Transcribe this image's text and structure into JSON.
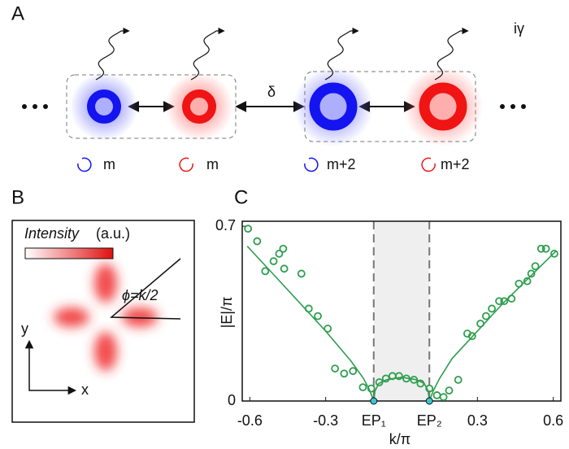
{
  "panel_a": {
    "label": "A",
    "coupling": "δ",
    "loss": "iγ",
    "rings": [
      {
        "label": "m",
        "color": "#1414f0"
      },
      {
        "label": "m",
        "color": "#f01414"
      },
      {
        "label": "m+2",
        "color": "#1414f0"
      },
      {
        "label": "m+2",
        "color": "#f01414"
      }
    ]
  },
  "panel_b": {
    "label": "B",
    "intensity_label": "Intensity",
    "intensity_unit": "(a.u.)",
    "angle_label": "ϕ=k/2",
    "axis_x": "x",
    "axis_y": "y",
    "color": "#f02828"
  },
  "chart_data": {
    "type": "scatter",
    "label": "C",
    "x_label": "k/π",
    "y_label": "|E|/π",
    "xlim": [
      -0.63,
      0.63
    ],
    "ylim": [
      0,
      0.72
    ],
    "xticks": [
      -0.6,
      -0.3,
      {
        "value": -0.11,
        "label": "EP₁"
      },
      {
        "value": 0.11,
        "label": "EP₂"
      },
      0.3,
      0.6
    ],
    "yticks": [
      0,
      0.7
    ],
    "shade_color": "#efefef",
    "ep_color": "#3ec4d0",
    "series": [
      {
        "type": "scatter",
        "color": "#2e9e4e",
        "x": [
          -0.607,
          -0.571,
          -0.539,
          -0.506,
          -0.484,
          -0.468,
          -0.464,
          -0.396,
          -0.367,
          -0.331,
          -0.292,
          -0.263,
          -0.227,
          -0.192,
          -0.153,
          -0.12,
          -0.088,
          -0.062,
          -0.036,
          -0.01,
          0.019,
          0.049,
          0.075,
          0.11,
          0.14,
          0.166,
          0.188,
          0.224,
          0.26,
          0.279,
          0.312,
          0.334,
          0.357,
          0.386,
          0.406,
          0.435,
          0.464,
          0.497,
          0.513,
          0.529,
          0.552,
          0.571,
          0.604
        ],
        "values": [
          0.69,
          0.64,
          0.52,
          0.56,
          0.59,
          0.61,
          0.53,
          0.51,
          0.37,
          0.34,
          0.29,
          0.13,
          0.11,
          0.12,
          0.055,
          0.05,
          0.075,
          0.09,
          0.1,
          0.1,
          0.09,
          0.085,
          0.07,
          0.05,
          0.023,
          0.016,
          0.042,
          0.085,
          0.27,
          0.26,
          0.31,
          0.34,
          0.37,
          0.4,
          0.4,
          0.41,
          0.47,
          0.48,
          0.51,
          0.54,
          0.61,
          0.61,
          0.59
        ]
      },
      {
        "type": "line",
        "color": "#2e9e4e",
        "x": [
          -0.61,
          -0.5,
          -0.4,
          -0.3,
          -0.2,
          -0.15,
          -0.125,
          -0.11,
          -0.105,
          -0.09,
          -0.06,
          0,
          0.06,
          0.09,
          0.105,
          0.11,
          0.125,
          0.15,
          0.2,
          0.3,
          0.4,
          0.5,
          0.61
        ],
        "values": [
          0.62,
          0.5,
          0.39,
          0.28,
          0.16,
          0.09,
          0.04,
          0,
          0.04,
          0.07,
          0.085,
          0.095,
          0.085,
          0.07,
          0.04,
          0,
          0.04,
          0.09,
          0.17,
          0.28,
          0.39,
          0.49,
          0.6
        ]
      }
    ]
  }
}
